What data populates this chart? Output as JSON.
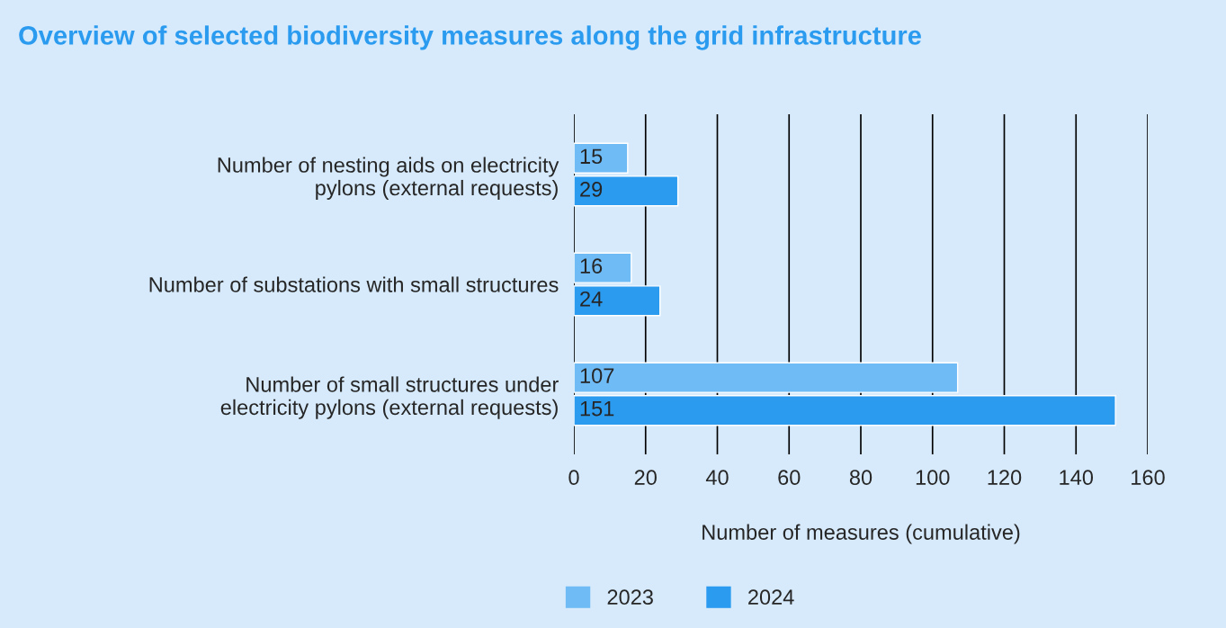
{
  "chart_data": {
    "type": "bar",
    "orientation": "horizontal",
    "title": "Overview of selected biodiversity measures along the grid infrastructure",
    "categories": [
      "Number of nesting aids on electricity\npylons (external requests)",
      "Number of substations with small structures",
      "Number of small structures under\nelectricity pylons (external requests)"
    ],
    "series": [
      {
        "name": "2023",
        "color": "#6fbbf6",
        "values": [
          15,
          16,
          107
        ]
      },
      {
        "name": "2024",
        "color": "#2b9bf0",
        "values": [
          29,
          24,
          151
        ]
      }
    ],
    "xlabel": "Number of measures (cumulative)",
    "xlim": [
      0,
      160
    ],
    "xticks": [
      0,
      20,
      40,
      60,
      80,
      100,
      120,
      140,
      160
    ],
    "grid": "x",
    "legend": "bottom",
    "data_labels": true
  }
}
